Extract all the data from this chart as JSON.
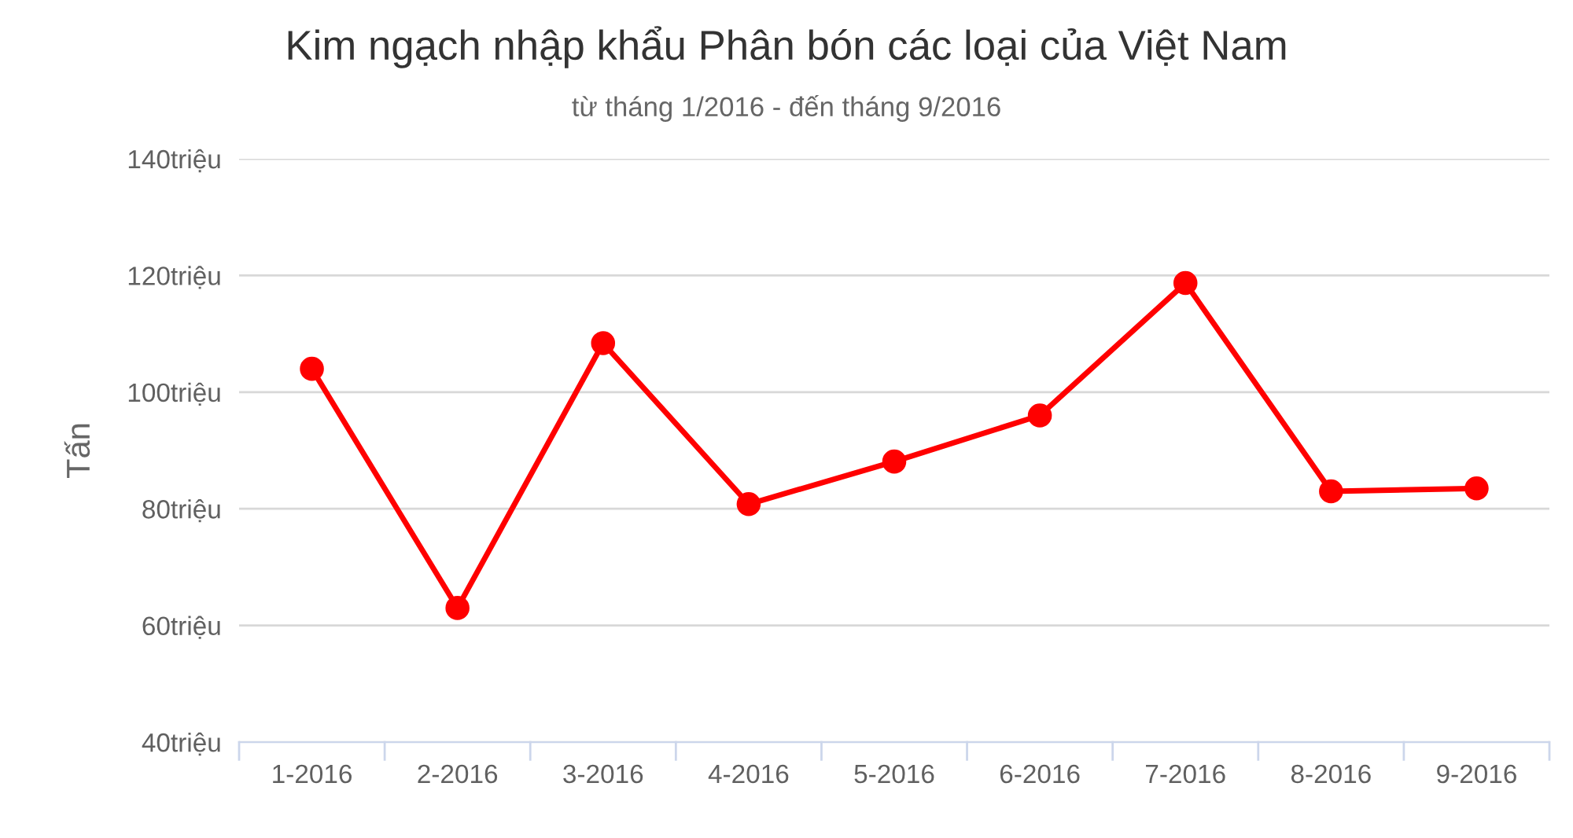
{
  "chart_data": {
    "type": "line",
    "title": "Kim ngạch nhập khẩu Phân bón các loại của Việt Nam",
    "subtitle": "từ tháng 1/2016 - đến tháng 9/2016",
    "ylabel": "Tấn",
    "categories": [
      "1-2016",
      "2-2016",
      "3-2016",
      "4-2016",
      "5-2016",
      "6-2016",
      "7-2016",
      "8-2016",
      "9-2016"
    ],
    "series": [
      {
        "color": "#ff0000",
        "values": [
          104.0,
          63.0,
          108.4,
          80.8,
          88.1,
          96.0,
          118.7,
          83.0,
          83.5
        ]
      }
    ],
    "ylim": [
      40,
      140
    ],
    "yticks": [
      {
        "value": 40,
        "label": "40triệu"
      },
      {
        "value": 60,
        "label": "60triệu"
      },
      {
        "value": 80,
        "label": "80triệu"
      },
      {
        "value": 100,
        "label": "100triệu"
      },
      {
        "value": 120,
        "label": "120triệu"
      },
      {
        "value": 140,
        "label": "140triệu"
      }
    ],
    "grid": "y",
    "marker": "circle",
    "line_style": "solid"
  }
}
